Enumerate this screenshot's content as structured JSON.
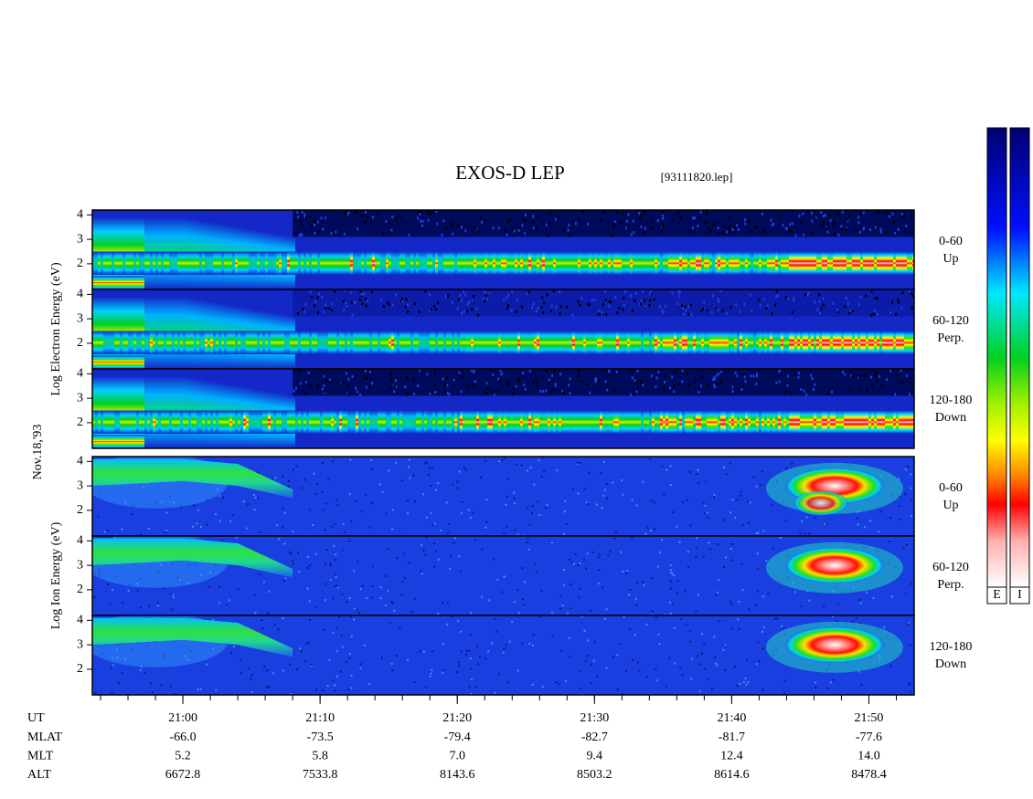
{
  "chart_data": {
    "type": "spectrogram",
    "title": "EXOS-D LEP",
    "subtitle": "[93111820.lep]",
    "date_label": "Nov.18,'93",
    "groups": [
      {
        "label": "Log Electron Energy (eV)",
        "panels": [
          {
            "label": "0-60",
            "sublabel": "Up"
          },
          {
            "label": "60-120",
            "sublabel": "Perp."
          },
          {
            "label": "120-180",
            "sublabel": "Down"
          }
        ]
      },
      {
        "label": "Log Ion Energy (eV)",
        "panels": [
          {
            "label": "0-60",
            "sublabel": "Up"
          },
          {
            "label": "60-120",
            "sublabel": "Perp."
          },
          {
            "label": "120-180",
            "sublabel": "Down"
          }
        ]
      }
    ],
    "ylim": [
      0.95,
      4.2
    ],
    "yticks": [
      2,
      3,
      4
    ],
    "xlabel": "UT",
    "xlim": [
      -6.6,
      53.3
    ],
    "xticks": [
      {
        "value": 0,
        "label": "21:00"
      },
      {
        "value": 10,
        "label": "21:10"
      },
      {
        "value": 20,
        "label": "21:20"
      },
      {
        "value": 30,
        "label": "21:30"
      },
      {
        "value": 40,
        "label": "21:40"
      },
      {
        "value": 50,
        "label": "21:50"
      }
    ],
    "rows": [
      {
        "name": "MLAT",
        "values": [
          -66,
          -73.5,
          -79.4,
          -82.7,
          -81.7,
          -77.6
        ],
        "value_labels": [
          "-66.0",
          "-73.5",
          "-79.4",
          "-82.7",
          "-81.7",
          "-77.6"
        ]
      },
      {
        "name": "MLT",
        "values": [
          5.2,
          5.8,
          7,
          9.4,
          12.4,
          14
        ],
        "value_labels": [
          "5.2",
          "5.8",
          "7.0",
          "9.4",
          "12.4",
          "14.0"
        ]
      },
      {
        "name": "ALT",
        "values": [
          6672.8,
          7533.8,
          8143.6,
          8503.2,
          8614.6,
          8478.4
        ],
        "value_labels": [
          "6672.8",
          "7533.8",
          "8143.6",
          "8503.2",
          "8614.6",
          "8478.4"
        ]
      }
    ],
    "colorbars": [
      "E",
      "I"
    ]
  }
}
